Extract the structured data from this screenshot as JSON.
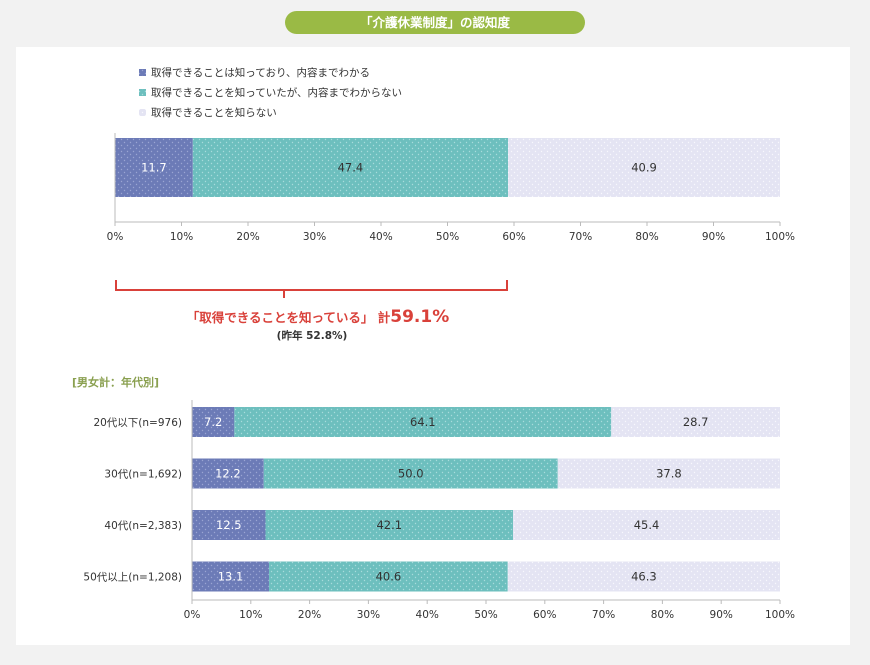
{
  "title": "「介護休業制度」の認知度",
  "colors": {
    "blue": "#6c7bb7",
    "teal": "#6dbfbe",
    "lav": "#e4e4f3",
    "accent_red": "#d9413a",
    "section_label": "#8aa050"
  },
  "legend": [
    "取得できることは知っており、内容までわかる",
    "取得できることを知っていたが、内容までわからない",
    "取得できることを知らない"
  ],
  "callout": {
    "main_prefix": "「取得できることを知っている」 計",
    "main_value": "59.1%",
    "sub": "(昨年 52.8%)"
  },
  "section_label": "[男女計：年代別]",
  "chart_data": [
    {
      "type": "bar",
      "orientation": "horizontal",
      "stacked": true,
      "categories": [
        ""
      ],
      "series": [
        {
          "name": "取得できることは知っており、内容までわかる",
          "values": [
            11.7
          ]
        },
        {
          "name": "取得できることを知っていたが、内容までわからない",
          "values": [
            47.4
          ]
        },
        {
          "name": "取得できることを知らない",
          "values": [
            40.9
          ]
        }
      ],
      "value_labels": [
        [
          "11.7",
          "47.4",
          "40.9"
        ]
      ],
      "xlim": [
        0,
        100
      ],
      "xticks": [
        "0%",
        "10%",
        "20%",
        "30%",
        "40%",
        "50%",
        "60%",
        "70%",
        "80%",
        "90%",
        "100%"
      ],
      "legend_position": "top-left"
    },
    {
      "type": "bar",
      "orientation": "horizontal",
      "stacked": true,
      "categories": [
        "20代以下(n=976)",
        "30代(n=1,692)",
        "40代(n=2,383)",
        "50代以上(n=1,208)"
      ],
      "series": [
        {
          "name": "取得できることは知っており、内容までわかる",
          "values": [
            7.2,
            12.2,
            12.5,
            13.1
          ]
        },
        {
          "name": "取得できることを知っていたが、内容までわからない",
          "values": [
            64.1,
            50.0,
            42.1,
            40.6
          ]
        },
        {
          "name": "取得できることを知らない",
          "values": [
            28.7,
            37.8,
            45.4,
            46.3
          ]
        }
      ],
      "value_labels": [
        [
          "7.2",
          "64.1",
          "28.7"
        ],
        [
          "12.2",
          "50.0",
          "37.8"
        ],
        [
          "12.5",
          "42.1",
          "45.4"
        ],
        [
          "13.1",
          "40.6",
          "46.3"
        ]
      ],
      "xlim": [
        0,
        100
      ],
      "xticks": [
        "0%",
        "10%",
        "20%",
        "30%",
        "40%",
        "50%",
        "60%",
        "70%",
        "80%",
        "90%",
        "100%"
      ]
    }
  ]
}
